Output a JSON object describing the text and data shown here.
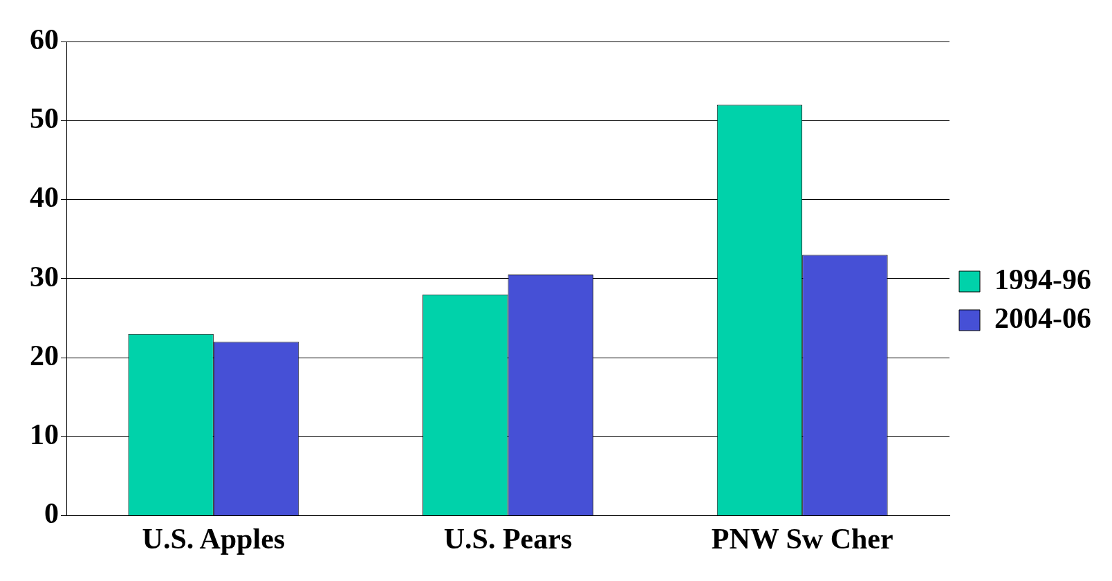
{
  "chart_data": {
    "type": "bar",
    "categories": [
      "U.S. Apples",
      "U.S. Pears",
      "PNW Sw Cher"
    ],
    "series": [
      {
        "name": "1994-96",
        "color": "#00d2aa",
        "values": [
          23,
          28,
          52
        ]
      },
      {
        "name": "2004-06",
        "color": "#4650d6",
        "values": [
          22,
          30.5,
          33
        ]
      }
    ],
    "ylim": [
      0,
      60
    ],
    "yticks": [
      0,
      10,
      20,
      30,
      40,
      50,
      60
    ],
    "grid": "y",
    "legend": "right"
  }
}
